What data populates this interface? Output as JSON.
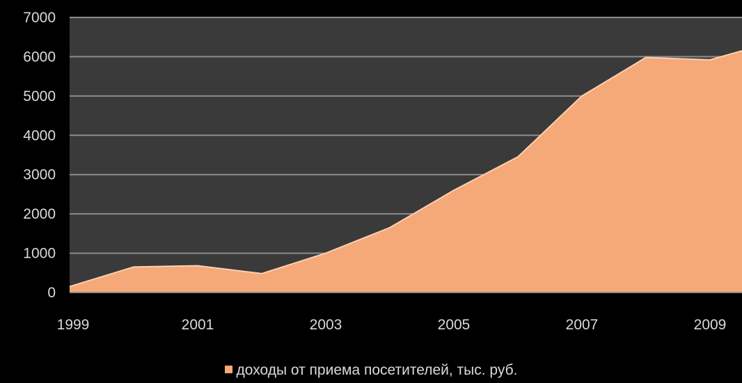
{
  "chart_data": {
    "type": "area",
    "x": [
      1999,
      2000,
      2001,
      2002,
      2003,
      2004,
      2005,
      2006,
      2007,
      2008,
      2008.5,
      2009,
      2009.5
    ],
    "series": [
      {
        "name": "доходы от приема посетителей, тыс. руб.",
        "values": [
          150,
          650,
          680,
          480,
          1000,
          1650,
          2600,
          3450,
          5000,
          5980,
          5950,
          5920,
          6150
        ],
        "color": "#f5a878"
      }
    ],
    "xticks": [
      "1999",
      "2001",
      "2003",
      "2005",
      "2007",
      "2009"
    ],
    "xtick_values": [
      1999,
      2001,
      2003,
      2005,
      2007,
      2009
    ],
    "yticks": [
      "0",
      "1000",
      "2000",
      "3000",
      "4000",
      "5000",
      "6000",
      "7000"
    ],
    "ylim": [
      0,
      7000
    ],
    "xlim": [
      1999,
      2009.5
    ],
    "grid": true,
    "legend_position": "bottom",
    "plot_background": "#3a3a3a",
    "page_background": "#000000",
    "grid_color": "#8c8c8c",
    "text_color": "#d9d9d9"
  }
}
